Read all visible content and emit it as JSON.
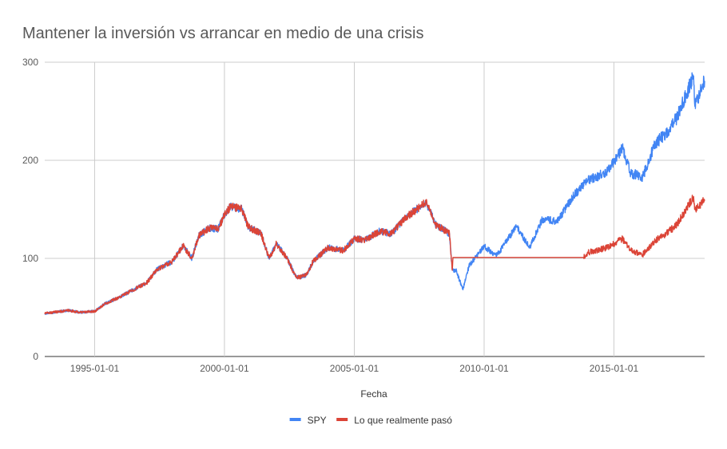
{
  "chart_data": {
    "type": "line",
    "title": "Mantener la inversión vs arrancar en medio de una crisis",
    "xlabel": "Fecha",
    "ylabel": "",
    "xlim": [
      "1993-01-29",
      "2018-06-30"
    ],
    "ylim": [
      0,
      300
    ],
    "y_ticks": [
      0,
      100,
      200,
      300
    ],
    "x_ticks": [
      "1995-01-01",
      "2000-01-01",
      "2005-01-01",
      "2010-01-01",
      "2015-01-01"
    ],
    "grid": true,
    "legend_position": "bottom",
    "series": [
      {
        "name": "SPY",
        "color": "#4285f4",
        "points": [
          [
            "1993-01-29",
            44
          ],
          [
            "1993-06-01",
            45
          ],
          [
            "1994-01-01",
            47
          ],
          [
            "1994-06-01",
            45
          ],
          [
            "1995-01-01",
            46
          ],
          [
            "1995-06-01",
            54
          ],
          [
            "1996-01-01",
            61
          ],
          [
            "1996-06-01",
            67
          ],
          [
            "1997-01-01",
            75
          ],
          [
            "1997-06-01",
            89
          ],
          [
            "1998-01-01",
            97
          ],
          [
            "1998-06-01",
            113
          ],
          [
            "1998-10-01",
            100
          ],
          [
            "1999-01-01",
            123
          ],
          [
            "1999-06-01",
            131
          ],
          [
            "1999-10-01",
            130
          ],
          [
            "2000-01-01",
            144
          ],
          [
            "2000-03-24",
            153
          ],
          [
            "2000-09-01",
            150
          ],
          [
            "2000-12-01",
            132
          ],
          [
            "2001-06-01",
            125
          ],
          [
            "2001-09-21",
            100
          ],
          [
            "2002-01-01",
            115
          ],
          [
            "2002-06-01",
            100
          ],
          [
            "2002-10-09",
            80
          ],
          [
            "2003-03-01",
            83
          ],
          [
            "2003-06-01",
            97
          ],
          [
            "2004-01-01",
            111
          ],
          [
            "2004-08-01",
            108
          ],
          [
            "2005-01-01",
            120
          ],
          [
            "2005-06-01",
            119
          ],
          [
            "2006-01-01",
            128
          ],
          [
            "2006-06-01",
            125
          ],
          [
            "2007-01-01",
            142
          ],
          [
            "2007-07-01",
            152
          ],
          [
            "2007-10-09",
            157
          ],
          [
            "2008-03-01",
            133
          ],
          [
            "2008-06-01",
            130
          ],
          [
            "2008-09-01",
            125
          ],
          [
            "2008-10-10",
            88
          ],
          [
            "2008-12-01",
            88
          ],
          [
            "2009-03-09",
            68
          ],
          [
            "2009-06-01",
            92
          ],
          [
            "2010-01-01",
            112
          ],
          [
            "2010-07-01",
            103
          ],
          [
            "2011-04-01",
            133
          ],
          [
            "2011-10-01",
            111
          ],
          [
            "2012-04-01",
            140
          ],
          [
            "2012-11-01",
            138
          ],
          [
            "2013-06-01",
            163
          ],
          [
            "2014-01-01",
            180
          ],
          [
            "2014-10-01",
            188
          ],
          [
            "2015-05-01",
            212
          ],
          [
            "2015-08-25",
            187
          ],
          [
            "2016-02-11",
            183
          ],
          [
            "2016-08-01",
            217
          ],
          [
            "2017-01-01",
            227
          ],
          [
            "2017-06-01",
            243
          ],
          [
            "2018-01-26",
            286
          ],
          [
            "2018-02-09",
            258
          ],
          [
            "2018-04-01",
            265
          ],
          [
            "2018-06-30",
            281
          ]
        ]
      },
      {
        "name": "Lo que realmente pasó",
        "color": "#db4437",
        "points": [
          [
            "1993-01-29",
            44
          ],
          [
            "1993-06-01",
            45
          ],
          [
            "1994-01-01",
            47
          ],
          [
            "1994-06-01",
            45
          ],
          [
            "1995-01-01",
            46
          ],
          [
            "1995-06-01",
            54
          ],
          [
            "1996-01-01",
            61
          ],
          [
            "1996-06-01",
            67
          ],
          [
            "1997-01-01",
            75
          ],
          [
            "1997-06-01",
            89
          ],
          [
            "1998-01-01",
            97
          ],
          [
            "1998-06-01",
            113
          ],
          [
            "1998-10-01",
            100
          ],
          [
            "1999-01-01",
            123
          ],
          [
            "1999-06-01",
            131
          ],
          [
            "1999-10-01",
            130
          ],
          [
            "2000-01-01",
            144
          ],
          [
            "2000-03-24",
            153
          ],
          [
            "2000-09-01",
            150
          ],
          [
            "2000-12-01",
            132
          ],
          [
            "2001-06-01",
            125
          ],
          [
            "2001-09-21",
            100
          ],
          [
            "2002-01-01",
            115
          ],
          [
            "2002-06-01",
            100
          ],
          [
            "2002-10-09",
            80
          ],
          [
            "2003-03-01",
            83
          ],
          [
            "2003-06-01",
            97
          ],
          [
            "2004-01-01",
            111
          ],
          [
            "2004-08-01",
            108
          ],
          [
            "2005-01-01",
            120
          ],
          [
            "2005-06-01",
            119
          ],
          [
            "2006-01-01",
            128
          ],
          [
            "2006-06-01",
            125
          ],
          [
            "2007-01-01",
            142
          ],
          [
            "2007-07-01",
            152
          ],
          [
            "2007-10-09",
            157
          ],
          [
            "2008-03-01",
            133
          ],
          [
            "2008-06-01",
            130
          ],
          [
            "2008-09-01",
            125
          ],
          [
            "2008-10-10",
            88
          ],
          [
            "2008-10-20",
            101
          ],
          [
            "2013-11-01",
            101
          ],
          [
            "2014-01-01",
            106
          ],
          [
            "2014-10-01",
            111
          ],
          [
            "2015-05-01",
            120
          ],
          [
            "2015-08-25",
            108
          ],
          [
            "2016-02-11",
            104
          ],
          [
            "2016-08-01",
            118
          ],
          [
            "2017-01-01",
            125
          ],
          [
            "2017-06-01",
            134
          ],
          [
            "2018-01-26",
            163
          ],
          [
            "2018-02-09",
            150
          ],
          [
            "2018-04-01",
            152
          ],
          [
            "2018-06-30",
            160
          ]
        ]
      }
    ]
  }
}
